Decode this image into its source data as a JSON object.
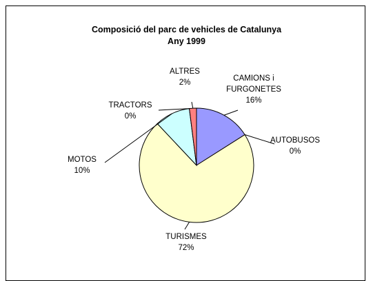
{
  "chart_data": {
    "type": "pie",
    "title": "Composició del parc de vehicles de Catalunya",
    "subtitle": "Any 1999",
    "categories": [
      "CAMIONS i FURGONETES",
      "AUTOBUSOS",
      "TURISMES",
      "MOTOS",
      "TRACTORS",
      "ALTRES"
    ],
    "values": [
      16,
      0,
      72,
      10,
      0,
      2
    ],
    "value_labels": [
      "16%",
      "0%",
      "72%",
      "10%",
      "0%",
      "2%"
    ],
    "colors": [
      "#9999ff",
      "#993366",
      "#ffffcc",
      "#ccffff",
      "#660066",
      "#ff8080"
    ]
  }
}
